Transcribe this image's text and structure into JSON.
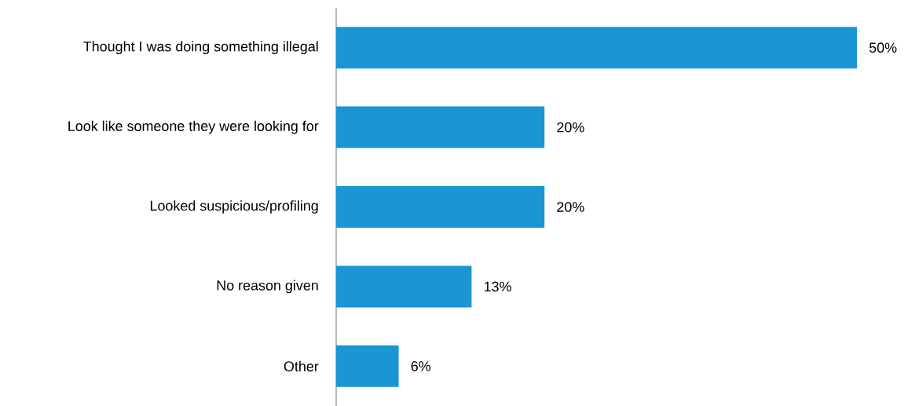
{
  "chart_data": {
    "type": "bar",
    "orientation": "horizontal",
    "categories": [
      "Thought I was doing something illegal",
      "Look like someone they were looking for",
      "Looked suspicious/profiling",
      "No reason given",
      "Other"
    ],
    "values": [
      50,
      20,
      20,
      13,
      6
    ],
    "value_labels": [
      "50%",
      "20%",
      "20%",
      "13%",
      "6%"
    ],
    "color": "#1a96d4",
    "xlim": [
      0,
      50
    ]
  }
}
